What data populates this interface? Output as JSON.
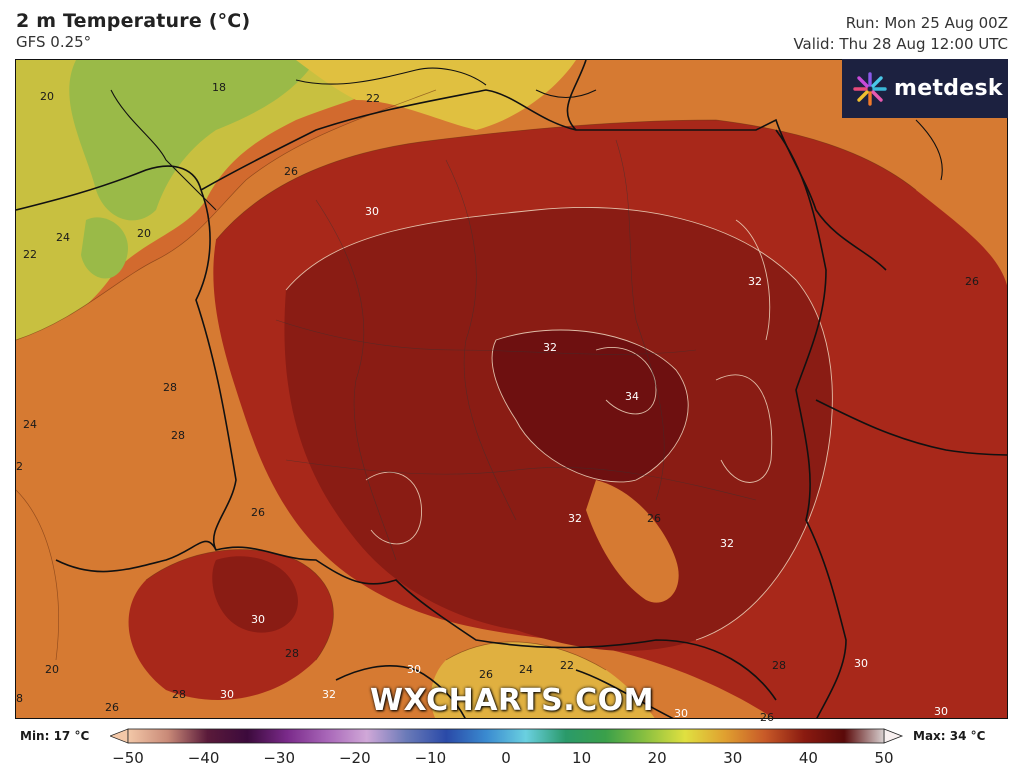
{
  "header": {
    "title": "2 m Temperature (°C)",
    "subtitle": "GFS 0.25°",
    "run": "Run: Mon 25 Aug 00Z",
    "valid": "Valid: Thu 28 Aug 12:00 UTC"
  },
  "logo": {
    "text": "metdesk"
  },
  "watermark": "WXCHARTS.COM",
  "map_labels": [
    {
      "text": "20"
    },
    {
      "text": "18"
    },
    {
      "text": "22"
    },
    {
      "text": "26"
    },
    {
      "text": "30"
    },
    {
      "text": "24"
    },
    {
      "text": "20"
    },
    {
      "text": "22"
    },
    {
      "text": "32"
    },
    {
      "text": "26"
    },
    {
      "text": "32"
    },
    {
      "text": "34"
    },
    {
      "text": "28"
    },
    {
      "text": "24"
    },
    {
      "text": "28"
    },
    {
      "text": "2"
    },
    {
      "text": "26"
    },
    {
      "text": "32"
    },
    {
      "text": "26"
    },
    {
      "text": "32"
    },
    {
      "text": "30"
    },
    {
      "text": "28"
    },
    {
      "text": "30"
    },
    {
      "text": "26"
    },
    {
      "text": "24"
    },
    {
      "text": "22"
    },
    {
      "text": "28"
    },
    {
      "text": "30"
    },
    {
      "text": "20"
    },
    {
      "text": "28"
    },
    {
      "text": "30"
    },
    {
      "text": "32"
    },
    {
      "text": "8"
    },
    {
      "text": "26"
    },
    {
      "text": "30"
    },
    {
      "text": "26"
    },
    {
      "text": "30"
    }
  ],
  "colorbar": {
    "min_label": "Min: 17 °C",
    "max_label": "Max: 34 °C",
    "ticks": [
      "−50",
      "−40",
      "−30",
      "−20",
      "−10",
      "0",
      "10",
      "20",
      "30",
      "40",
      "50"
    ],
    "range": [
      -50,
      50
    ],
    "colors": {
      "m50": "#f3c8a8",
      "m45": "#c98a78",
      "m40": "#5a1a3a",
      "m35": "#3c0a3c",
      "m30": "#7a2a8a",
      "m25": "#a866b8",
      "m20": "#d0a8d8",
      "m15": "#6a7ab8",
      "m10": "#2a4aa8",
      "m5": "#3a8ad0",
      "p0": "#6ad0e0",
      "p5": "#2a9a6a",
      "p10": "#3aa04a",
      "p15": "#8ac040",
      "p20": "#e0e040",
      "p25": "#e0a030",
      "p30": "#c85a28",
      "p35": "#8a1a10",
      "p40": "#5a0a0a",
      "p45": "#d8d0d0"
    }
  }
}
